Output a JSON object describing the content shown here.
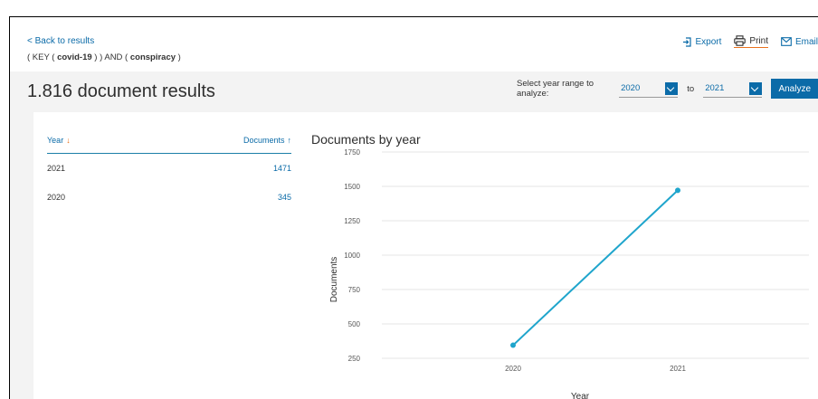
{
  "header": {
    "back_label": "< Back to results",
    "query_parts": [
      "( KEY ( ",
      "covid-19",
      " ) ) AND ( ",
      "conspiracy",
      " )"
    ],
    "actions": [
      {
        "label": "Export",
        "icon": "export-icon"
      },
      {
        "label": "Print",
        "icon": "print-icon"
      },
      {
        "label": "Email",
        "icon": "email-icon"
      }
    ]
  },
  "results": {
    "title": "1.816 document results",
    "range_label": "Select year range to analyze:",
    "from_year": "2020",
    "to_label": "to",
    "to_year": "2021",
    "analyze_label": "Analyze"
  },
  "table": {
    "col_year": "Year",
    "col_docs": "Documents",
    "rows": [
      {
        "year": "2021",
        "docs": "1471"
      },
      {
        "year": "2020",
        "docs": "345"
      }
    ]
  },
  "chart_data": {
    "type": "line",
    "title": "Documents by year",
    "xlabel": "Year",
    "ylabel": "Documents",
    "x": [
      "2020",
      "2021"
    ],
    "values": [
      345,
      1471
    ],
    "yticks": [
      250,
      500,
      750,
      1000,
      1250,
      1500,
      1750
    ],
    "ylim": [
      250,
      1750
    ],
    "grid": true,
    "color": "#1fa5cc"
  }
}
